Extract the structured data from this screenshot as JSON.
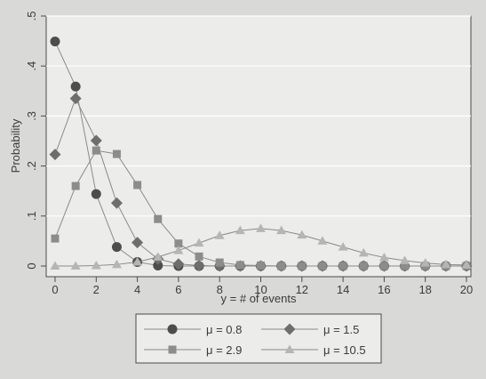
{
  "chart_data": {
    "type": "line",
    "xlabel": "y = # of events",
    "ylabel": "Probability",
    "xlim": [
      0,
      20
    ],
    "ylim": [
      0,
      0.5
    ],
    "x_ticks": [
      0,
      2,
      4,
      6,
      8,
      10,
      12,
      14,
      16,
      18,
      20
    ],
    "x_tick_labels": [
      "0",
      "2",
      "4",
      "6",
      "8",
      "10",
      "12",
      "14",
      "16",
      "18",
      "20"
    ],
    "y_ticks": [
      0,
      0.1,
      0.2,
      0.3,
      0.4,
      0.5
    ],
    "y_tick_labels": [
      "0",
      ".1",
      ".2",
      ".3",
      ".4",
      ".5"
    ],
    "grid": "horizontal",
    "legend_position": "bottom",
    "x": [
      0,
      1,
      2,
      3,
      4,
      5,
      6,
      7,
      8,
      9,
      10,
      11,
      12,
      13,
      14,
      15,
      16,
      17,
      18,
      19,
      20
    ],
    "series": [
      {
        "name": "μ = 0.8",
        "marker": "circle",
        "color": "#4d4d4d",
        "values": [
          0.449,
          0.359,
          0.144,
          0.038,
          0.008,
          0.001,
          0,
          0,
          0,
          0,
          0,
          0,
          0,
          0,
          0,
          0,
          0,
          0,
          0,
          0,
          0
        ]
      },
      {
        "name": "μ = 1.5",
        "marker": "diamond",
        "color": "#6e6e6e",
        "values": [
          0.223,
          0.335,
          0.251,
          0.126,
          0.047,
          0.014,
          0.004,
          0.001,
          0,
          0,
          0,
          0,
          0,
          0,
          0,
          0,
          0,
          0,
          0,
          0,
          0
        ]
      },
      {
        "name": "μ = 2.9",
        "marker": "square",
        "color": "#8c8c8c",
        "values": [
          0.055,
          0.16,
          0.231,
          0.224,
          0.162,
          0.094,
          0.045,
          0.019,
          0.007,
          0.002,
          0.001,
          0,
          0,
          0,
          0,
          0,
          0,
          0,
          0,
          0,
          0
        ]
      },
      {
        "name": "μ = 10.5",
        "marker": "triangle",
        "color": "#b5b5b5",
        "values": [
          0,
          0,
          0.001,
          0.003,
          0.008,
          0.018,
          0.031,
          0.046,
          0.061,
          0.071,
          0.075,
          0.071,
          0.062,
          0.05,
          0.038,
          0.026,
          0.017,
          0.011,
          0.006,
          0.003,
          0.002
        ]
      }
    ]
  }
}
